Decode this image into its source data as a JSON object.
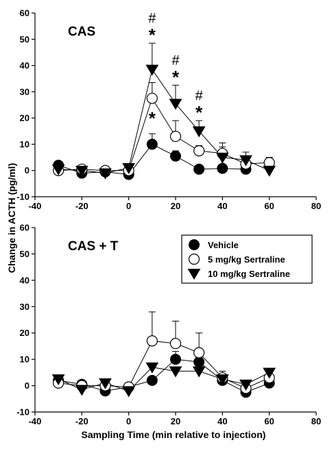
{
  "ylabel": "Change in ACTH (pg/ml)",
  "legend": {
    "entries": [
      {
        "name": "Vehicle",
        "marker": "circle-filled"
      },
      {
        "name": "5 mg/kg Sertraline",
        "marker": "circle-open"
      },
      {
        "name": "10 mg/kg Sertraline",
        "marker": "triangle-down-filled"
      }
    ],
    "panel": "CAS + T"
  },
  "chart_data": [
    {
      "type": "line",
      "title": "CAS",
      "xlabel": "",
      "ylabel": "Change in ACTH (pg/ml)",
      "xlim": [
        -40,
        80
      ],
      "ylim": [
        -10,
        60
      ],
      "xticks": [
        -40,
        -20,
        0,
        20,
        40,
        60,
        80
      ],
      "yticks": [
        -10,
        0,
        10,
        20,
        30,
        40,
        50,
        60
      ],
      "x": [
        -30,
        -20,
        -10,
        0,
        10,
        20,
        30,
        40,
        50,
        60
      ],
      "series": [
        {
          "name": "Vehicle",
          "marker": "circle-filled",
          "values": [
            2,
            -1,
            -0.5,
            -1.5,
            10,
            5.5,
            0.5,
            0.8,
            0.5,
            null
          ],
          "errors": [
            0.5,
            0.5,
            0.5,
            0.5,
            4,
            2,
            0.5,
            0.5,
            0.5,
            null
          ]
        },
        {
          "name": "5 mg/kg Sertraline",
          "marker": "circle-open",
          "values": [
            0,
            0.5,
            0,
            0,
            27.5,
            13,
            7.5,
            6.5,
            2.5,
            3
          ],
          "errors": [
            0.5,
            0.5,
            0.5,
            0.5,
            6,
            6,
            2,
            4,
            2,
            2
          ]
        },
        {
          "name": "10 mg/kg Sertraline",
          "marker": "triangle-down-filled",
          "values": [
            0.5,
            0,
            -1,
            1,
            38.5,
            25.5,
            15,
            5,
            4,
            0
          ],
          "errors": [
            0.5,
            0.5,
            0.5,
            1.5,
            10,
            7,
            4,
            4,
            3,
            0.5
          ]
        }
      ],
      "annotations": [
        {
          "x": 10,
          "hash": "#",
          "star": "*",
          "starLower": "*"
        },
        {
          "x": 20,
          "hash": "#",
          "star": "*"
        },
        {
          "x": 30,
          "hash": "#",
          "star": "*"
        }
      ]
    },
    {
      "type": "line",
      "title": "CAS + T",
      "xlabel": "Sampling Time (min relative to injection)",
      "ylabel": "Change in ACTH (pg/ml)",
      "xlim": [
        -40,
        80
      ],
      "ylim": [
        -10,
        60
      ],
      "xticks": [
        -40,
        -20,
        0,
        20,
        40,
        60,
        80
      ],
      "yticks": [
        -10,
        0,
        10,
        20,
        30,
        40,
        50,
        60
      ],
      "x": [
        -30,
        -20,
        -10,
        0,
        10,
        20,
        30,
        40,
        50,
        60
      ],
      "series": [
        {
          "name": "Vehicle",
          "marker": "circle-filled",
          "values": [
            2,
            0.5,
            -2,
            -0.5,
            2,
            10,
            9,
            2,
            -2.5,
            1
          ],
          "errors": [
            0.5,
            0.5,
            0.5,
            0.5,
            1,
            3,
            2,
            1.5,
            1.5,
            1
          ]
        },
        {
          "name": "5 mg/kg Sertraline",
          "marker": "circle-open",
          "values": [
            1,
            0,
            0,
            -0.5,
            17,
            16,
            12.5,
            3,
            -1,
            3
          ],
          "errors": [
            0.5,
            0.5,
            0.5,
            0.5,
            11,
            8.5,
            7.5,
            2.5,
            2,
            2
          ]
        },
        {
          "name": "10 mg/kg Sertraline",
          "marker": "triangle-down-filled",
          "values": [
            2.5,
            -1.5,
            1,
            -2,
            7,
            5.5,
            5.5,
            2.5,
            0.5,
            5
          ],
          "errors": [
            1,
            0.5,
            0.5,
            0.5,
            1.5,
            1.5,
            1.5,
            1.5,
            1,
            1.5
          ]
        }
      ],
      "annotations": []
    }
  ]
}
